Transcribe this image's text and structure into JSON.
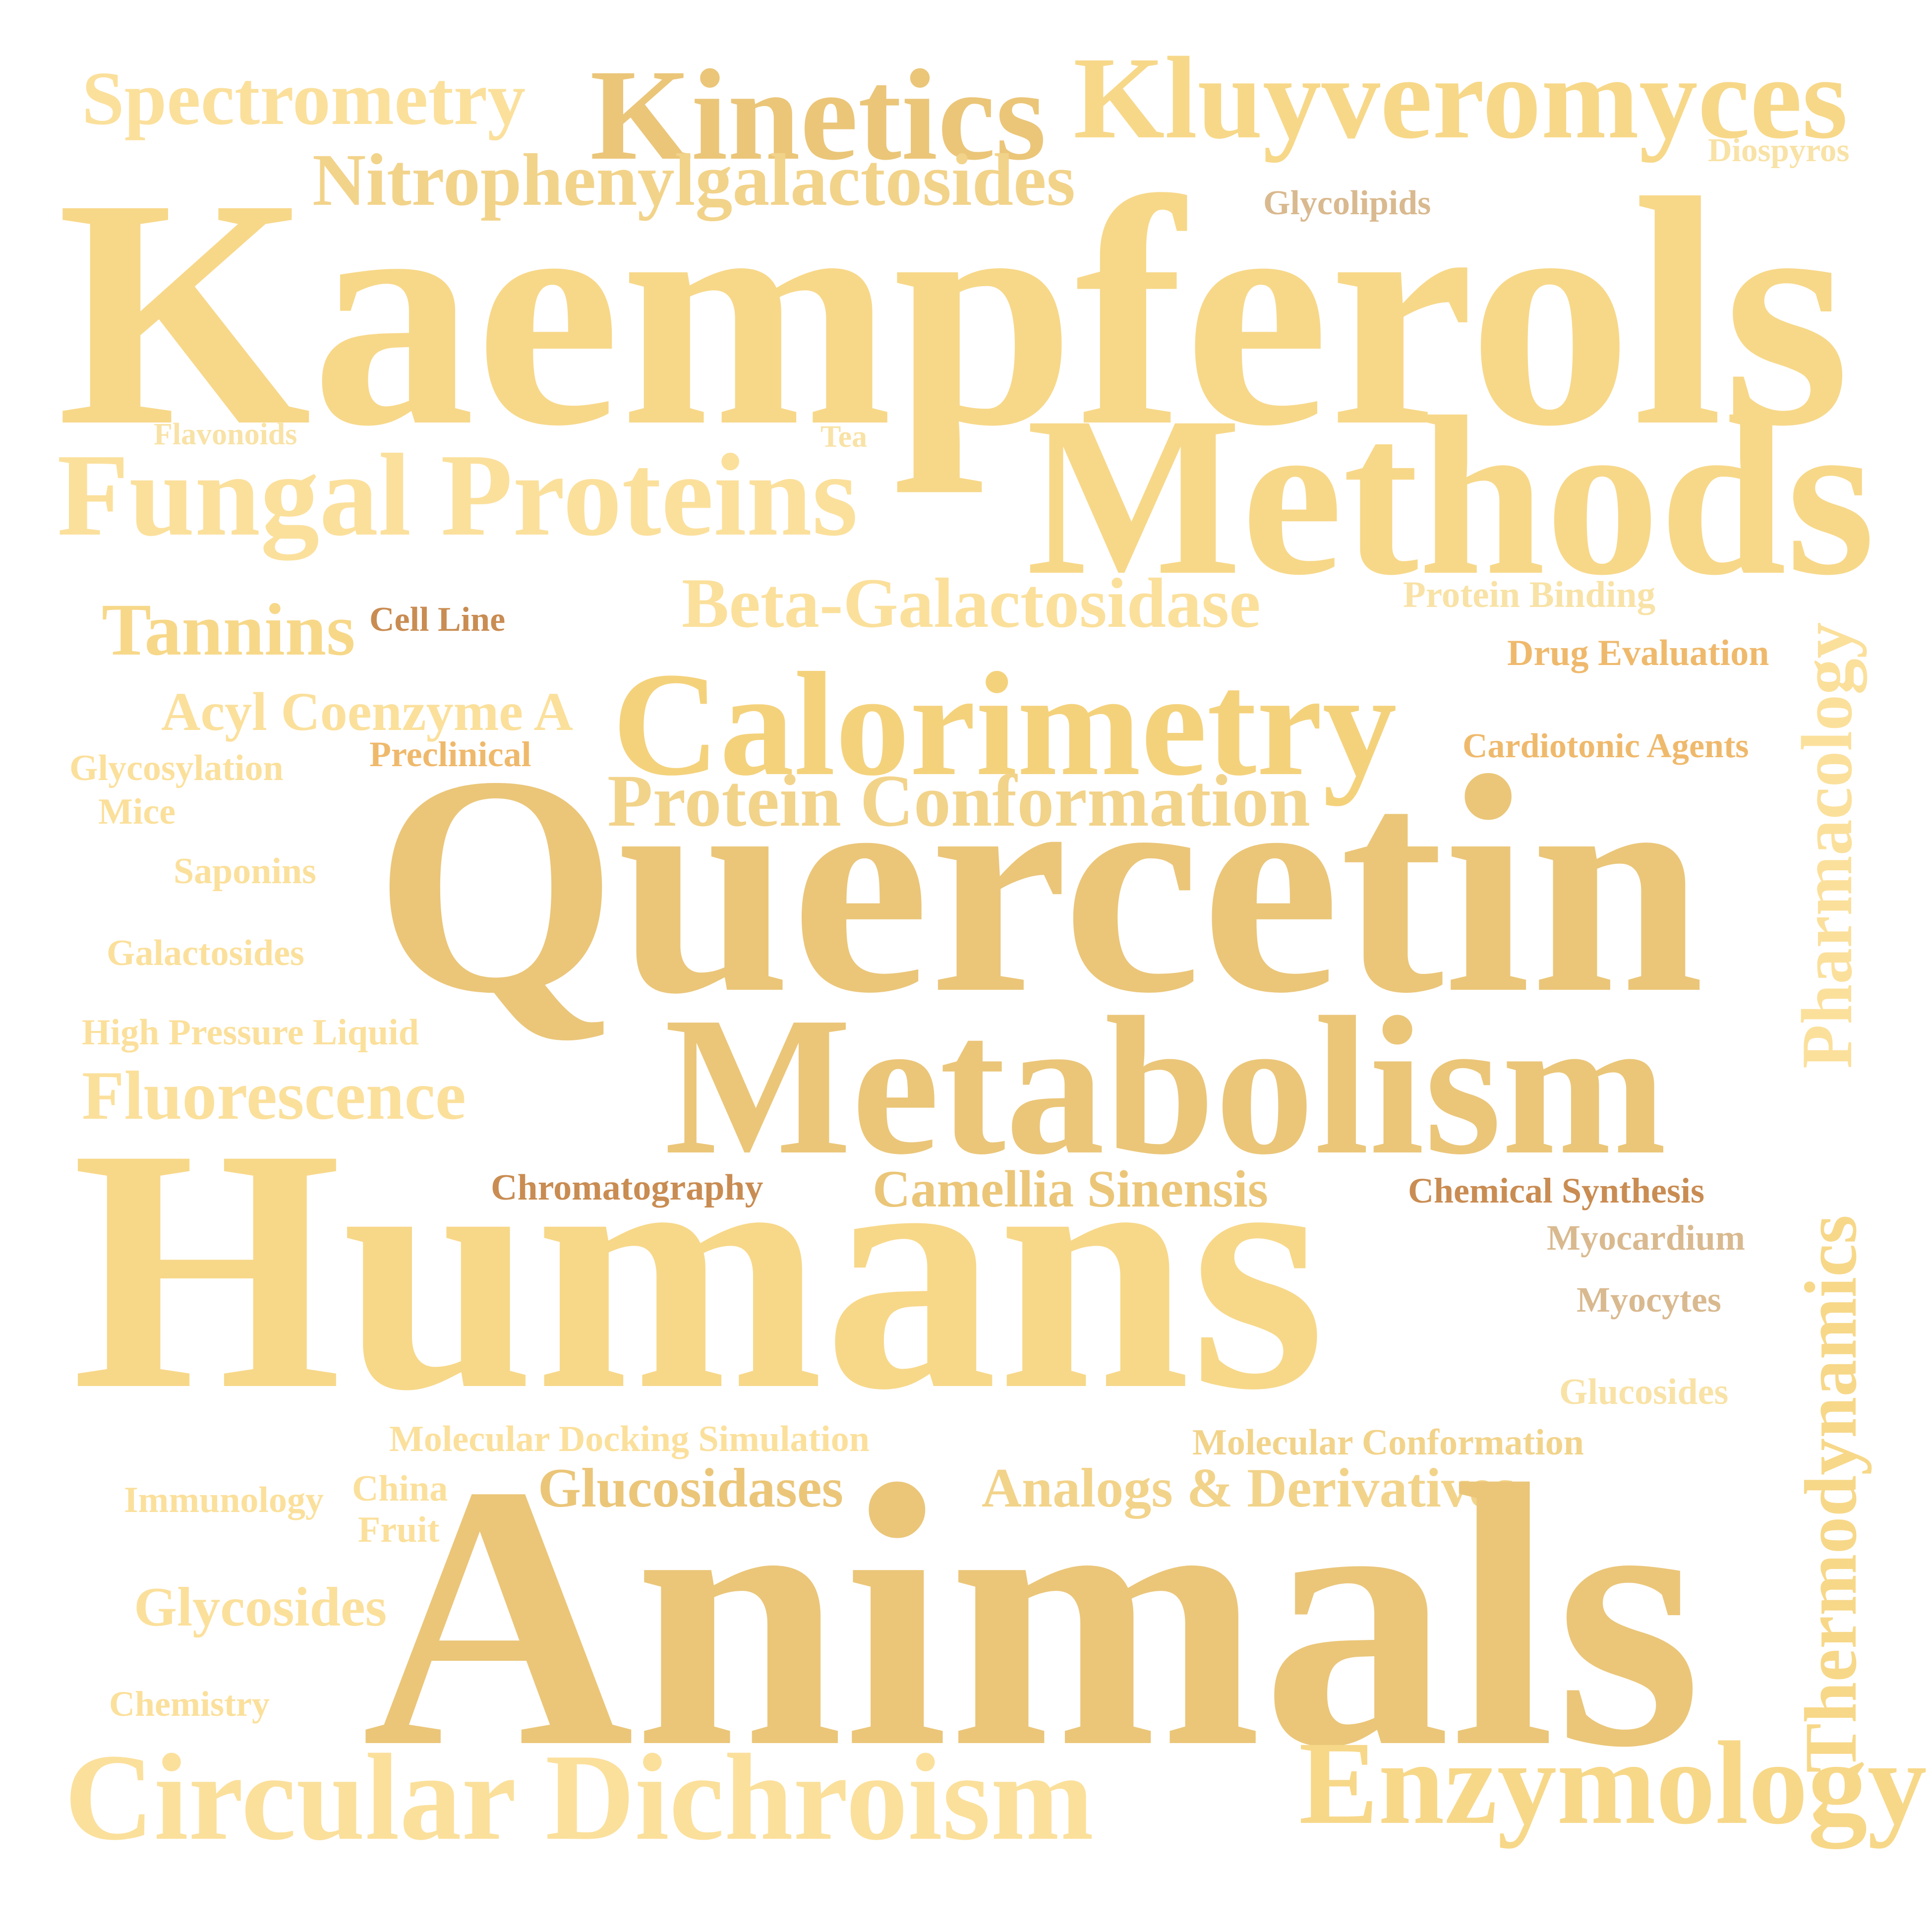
{
  "colors": {
    "background": "#ffffff",
    "gold": "#f7d889",
    "light_gold": "#fbe09c",
    "muted_gold": "#ebc679",
    "pale_gold": "#f8e2a6",
    "orange": "#efb96c",
    "brown": "#c98c52",
    "tan": "#d9b98f"
  },
  "words": {
    "spectrometry": "Spectrometry",
    "kinetics": "Kinetics",
    "kluyveromyces": "Kluyveromyces",
    "diospyros": "Diospyros",
    "nitrophenylgalactosides": "Nitrophenylgalactosides",
    "glycolipids": "Glycolipids",
    "kaempferols": "Kaempferols",
    "flavonoids": "Flavonoids",
    "tea": "Tea",
    "methods": "Methods",
    "fungal_proteins": "Fungal Proteins",
    "protein_binding": "Protein Binding",
    "beta_galactosidase": "Beta-Galactosidase",
    "tannins": "Tannins",
    "cell_line": "Cell Line",
    "drug_evaluation": "Drug Evaluation",
    "pharmacology": "Pharmacology",
    "acyl_coenzyme_a": "Acyl Coenzyme A",
    "calorimetry": "Calorimetry",
    "preclinical": "Preclinical",
    "cardiotonic_agents": "Cardiotonic Agents",
    "glycosylation": "Glycosylation",
    "mice": "Mice",
    "protein_conformation": "Protein Conformation",
    "saponins": "Saponins",
    "quercetin": "Quercetin",
    "galactosides": "Galactosides",
    "high_pressure_liquid": "High Pressure Liquid",
    "metabolism": "Metabolism",
    "fluorescence": "Fluorescence",
    "chromatography": "Chromatography",
    "camellia_sinensis": "Camellia Sinensis",
    "chemical_synthesis": "Chemical Synthesis",
    "myocardium": "Myocardium",
    "humans": "Humans",
    "myocytes": "Myocytes",
    "thermodynamics": "Thermodynamics",
    "glucosides": "Glucosides",
    "molecular_docking_simulation": "Molecular Docking Simulation",
    "molecular_conformation": "Molecular Conformation",
    "immunology": "Immunology",
    "china": "China",
    "fruit": "Fruit",
    "glucosidases": "Glucosidases",
    "analogs_derivatives": "Analogs & Derivatives",
    "glycosides": "Glycosides",
    "animals": "Animals",
    "chemistry": "Chemistry",
    "circular_dichroism": "Circular Dichroism",
    "enzymology": "Enzymology"
  }
}
